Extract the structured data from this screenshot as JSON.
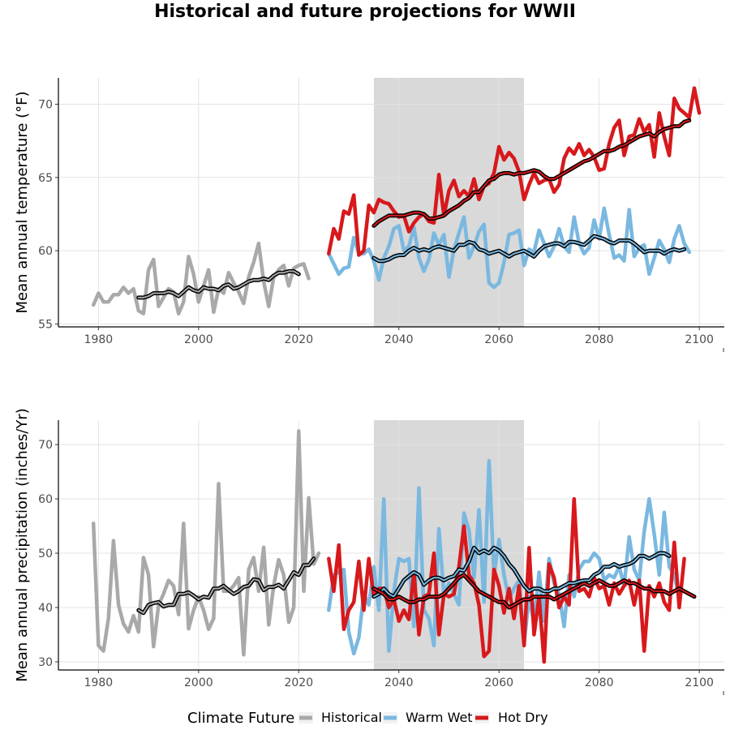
{
  "title": "Historical and future projections for WWII",
  "colors": {
    "historical": "#a9a9a9",
    "warm_wet": "#7ab8e0",
    "hot_dry": "#d7191c",
    "moving_average": "#000000",
    "shaded_period": "#d9d9d9",
    "grid": "#e3e3e3"
  },
  "legend": {
    "title": "Climate Future",
    "items": [
      {
        "label": "Historical",
        "color": "#a9a9a9"
      },
      {
        "label": "Warm Wet",
        "color": "#7ab8e0"
      },
      {
        "label": "Hot Dry",
        "color": "#d7191c"
      }
    ]
  },
  "chart_data": [
    {
      "type": "line",
      "ylabel": "Mean annual temperature (°F)",
      "xlabel": "",
      "xlim": [
        1972,
        2105
      ],
      "ylim": [
        54.8,
        71.8
      ],
      "x_ticks": [
        1980,
        2000,
        2020,
        2040,
        2060,
        2080,
        2100
      ],
      "y_ticks": [
        55,
        60,
        65,
        70
      ],
      "shaded_period": [
        2035,
        2065
      ],
      "series": [
        {
          "name": "Historical",
          "x_start": 1979,
          "values": [
            56.3,
            57.1,
            56.5,
            56.5,
            57.0,
            57.0,
            57.5,
            57.1,
            57.4,
            55.9,
            55.7,
            58.7,
            59.4,
            56.2,
            56.8,
            57.4,
            57.2,
            55.7,
            56.5,
            59.6,
            58.4,
            56.5,
            57.6,
            58.7,
            55.8,
            57.4,
            57.1,
            58.5,
            57.8,
            57.2,
            56.4,
            58.2,
            59.2,
            60.5,
            57.9,
            56.2,
            58.2,
            58.7,
            59.0,
            57.6,
            58.8,
            59.0,
            59.1,
            58.1
          ]
        },
        {
          "name": "Historical moving average",
          "x_start": 1988,
          "values": [
            56.8,
            56.8,
            56.9,
            57.1,
            57.1,
            57.1,
            57.2,
            57.1,
            56.9,
            57.2,
            57.5,
            57.3,
            57.2,
            57.5,
            57.4,
            57.4,
            57.3,
            57.6,
            57.7,
            57.4,
            57.5,
            57.7,
            57.9,
            58.0,
            58.0,
            58.1,
            58.0,
            58.3,
            58.5,
            58.5,
            58.6,
            58.6,
            58.4
          ]
        },
        {
          "name": "Warm Wet",
          "x_start": 2026,
          "values": [
            59.8,
            59.1,
            58.4,
            58.8,
            58.9,
            60.9,
            59.8,
            59.8,
            60.1,
            59.3,
            58.0,
            59.5,
            60.3,
            61.5,
            61.7,
            60.0,
            60.3,
            61.6,
            59.5,
            58.6,
            59.4,
            61.2,
            60.4,
            61.1,
            58.2,
            60.1,
            61.2,
            62.3,
            59.5,
            60.3,
            61.3,
            61.8,
            57.8,
            57.5,
            57.8,
            59.2,
            61.1,
            61.2,
            61.4,
            59.0,
            60.1,
            59.9,
            61.4,
            60.5,
            59.6,
            60.3,
            61.5,
            60.3,
            59.9,
            62.3,
            60.5,
            59.8,
            60.2,
            62.1,
            60.8,
            62.9,
            61.1,
            59.5,
            59.7,
            59.3,
            62.8,
            59.6,
            60.2,
            60.4,
            58.4,
            59.5,
            60.7,
            60.1,
            59.2,
            60.8,
            61.7,
            60.5,
            59.9
          ]
        },
        {
          "name": "Warm Wet moving average",
          "x_start": 2035,
          "values": [
            59.5,
            59.3,
            59.3,
            59.4,
            59.6,
            59.7,
            59.7,
            60.0,
            60.2,
            60.0,
            60.1,
            60.0,
            60.2,
            60.3,
            60.2,
            60.1,
            60.0,
            60.4,
            60.4,
            60.6,
            60.5,
            60.1,
            60.0,
            59.8,
            59.9,
            60.0,
            59.8,
            59.6,
            59.8,
            59.9,
            60.0,
            59.8,
            59.6,
            60.0,
            60.3,
            60.4,
            60.5,
            60.5,
            60.3,
            60.6,
            60.6,
            60.5,
            60.4,
            60.7,
            61.0,
            60.9,
            60.8,
            60.6,
            60.5,
            60.7,
            60.7,
            60.7,
            60.5,
            60.2,
            59.9,
            60.0,
            60.0,
            60.0,
            59.8,
            60.0,
            60.1,
            60.0,
            60.1
          ]
        },
        {
          "name": "Hot Dry",
          "x_start": 2026,
          "values": [
            59.8,
            61.5,
            60.8,
            62.7,
            62.5,
            63.8,
            59.7,
            60.0,
            63.1,
            62.6,
            63.5,
            63.3,
            63.2,
            62.7,
            62.3,
            62.4,
            61.3,
            61.9,
            62.3,
            62.5,
            62.0,
            61.9,
            65.2,
            62.4,
            64.1,
            64.8,
            63.7,
            64.1,
            63.7,
            64.9,
            63.5,
            64.4,
            64.6,
            65.3,
            67.1,
            66.2,
            66.7,
            66.3,
            65.4,
            63.5,
            64.5,
            65.3,
            64.6,
            64.8,
            64.9,
            64.0,
            64.5,
            66.3,
            67.0,
            66.6,
            67.3,
            66.5,
            66.9,
            66.4,
            65.5,
            65.6,
            67.3,
            68.4,
            68.9,
            66.5,
            67.8,
            67.9,
            69.0,
            68.1,
            68.6,
            66.4,
            69.4,
            67.8,
            66.5,
            70.4,
            69.7,
            69.4,
            69.1,
            71.1,
            69.4
          ]
        },
        {
          "name": "Hot Dry moving average",
          "x_start": 2035,
          "values": [
            61.7,
            62.0,
            62.2,
            62.4,
            62.4,
            62.4,
            62.4,
            62.5,
            62.6,
            62.6,
            62.5,
            62.2,
            62.2,
            62.3,
            62.4,
            62.7,
            62.9,
            63.1,
            63.4,
            63.6,
            64.0,
            64.0,
            64.4,
            64.8,
            64.9,
            65.2,
            65.3,
            65.3,
            65.2,
            65.3,
            65.3,
            65.4,
            65.5,
            65.4,
            65.1,
            64.9,
            64.9,
            65.1,
            65.3,
            65.5,
            65.7,
            65.9,
            66.1,
            66.2,
            66.4,
            66.6,
            66.8,
            66.8,
            66.9,
            67.1,
            67.2,
            67.4,
            67.6,
            67.8,
            67.9,
            68.0,
            67.8,
            68.1,
            68.3,
            68.4,
            68.5,
            68.5,
            68.8,
            68.9
          ]
        }
      ]
    },
    {
      "type": "line",
      "ylabel": "Mean annual precipitation (inches/Yr)",
      "xlabel": "",
      "xlim": [
        1972,
        2105
      ],
      "ylim": [
        28.5,
        74.5
      ],
      "x_ticks": [
        1980,
        2000,
        2020,
        2040,
        2060,
        2080,
        2100
      ],
      "y_ticks": [
        30,
        40,
        50,
        60,
        70
      ],
      "shaded_period": [
        2035,
        2065
      ],
      "series": [
        {
          "name": "Historical",
          "x_start": 1979,
          "values": [
            55.5,
            33.0,
            32.0,
            38.0,
            52.3,
            40.5,
            37.0,
            35.5,
            38.5,
            35.5,
            49.2,
            46.0,
            32.8,
            40.5,
            42.5,
            45.0,
            44.0,
            38.7,
            55.5,
            36.1,
            39.5,
            42.0,
            39.5,
            36.0,
            38.0,
            62.8,
            43.0,
            43.0,
            44.0,
            45.5,
            31.3,
            47.0,
            49.2,
            43.0,
            51.1,
            36.8,
            44.0,
            48.8,
            46.0,
            37.3,
            40.0,
            72.5,
            43.0,
            60.2,
            48.0,
            50.0
          ]
        },
        {
          "name": "Historical moving average",
          "x_start": 1988,
          "values": [
            39.5,
            39.0,
            40.5,
            40.8,
            41.0,
            40.2,
            40.5,
            40.5,
            42.5,
            42.5,
            42.8,
            42.2,
            41.5,
            42.0,
            41.8,
            43.5,
            43.5,
            44.0,
            43.2,
            42.5,
            43.0,
            43.8,
            44.0,
            45.2,
            45.0,
            43.2,
            43.8,
            43.8,
            44.2,
            43.5,
            45.0,
            46.5,
            46.0,
            47.8,
            47.8,
            49.0
          ]
        },
        {
          "name": "Warm Wet",
          "x_start": 2026,
          "values": [
            39.5,
            46.0,
            46.5,
            47.0,
            35.5,
            31.5,
            34.5,
            42.5,
            40.5,
            47.5,
            39.5,
            60.0,
            32.0,
            43.0,
            49.0,
            48.5,
            49.0,
            36.5,
            62.0,
            39.5,
            38.0,
            33.0,
            54.5,
            42.5,
            44.5,
            42.5,
            40.5,
            57.4,
            54.2,
            45.5,
            58.0,
            41.0,
            67.0,
            46.0,
            52.5,
            46.0,
            41.5,
            43.5,
            45.0,
            33.2,
            42.0,
            37.0,
            46.5,
            37.5,
            49.0,
            44.5,
            42.5,
            36.5,
            46.0,
            42.0,
            47.0,
            48.5,
            48.5,
            50.0,
            49.0,
            45.0,
            46.0,
            45.5,
            47.5,
            44.0,
            53.0,
            47.0,
            45.0,
            54.0,
            60.0,
            53.5,
            46.0,
            57.5,
            47.5,
            46.0,
            41.8
          ]
        },
        {
          "name": "Warm Wet moving average",
          "x_start": 2035,
          "values": [
            42.0,
            42.5,
            43.5,
            42.5,
            42.0,
            43.5,
            45.0,
            45.8,
            46.5,
            46.0,
            44.2,
            45.0,
            45.5,
            45.5,
            45.0,
            45.5,
            45.8,
            47.0,
            46.8,
            48.5,
            51.0,
            50.0,
            50.5,
            50.0,
            51.0,
            50.5,
            49.5,
            48.0,
            47.0,
            45.5,
            44.0,
            43.0,
            43.5,
            43.5,
            43.0,
            43.0,
            43.5,
            43.5,
            44.0,
            44.5,
            44.5,
            44.8,
            45.0,
            45.0,
            46.0,
            46.5,
            47.5,
            47.5,
            48.0,
            47.5,
            47.8,
            48.0,
            48.5,
            49.5,
            49.5,
            49.0,
            49.5,
            50.0,
            50.0,
            49.5
          ]
        },
        {
          "name": "Hot Dry",
          "x_start": 2026,
          "values": [
            49.0,
            43.0,
            51.5,
            36.0,
            39.5,
            41.0,
            48.5,
            39.5,
            49.0,
            42.0,
            43.5,
            43.5,
            40.0,
            41.5,
            37.5,
            39.5,
            37.8,
            46.5,
            35.0,
            42.0,
            42.5,
            50.0,
            35.0,
            42.5,
            42.0,
            42.5,
            47.5,
            55.0,
            46.0,
            44.5,
            40.5,
            31.0,
            32.0,
            47.0,
            44.0,
            39.0,
            43.5,
            38.0,
            44.0,
            33.0,
            51.0,
            35.0,
            42.0,
            30.0,
            48.0,
            45.5,
            40.0,
            42.0,
            40.5,
            60.0,
            43.0,
            43.5,
            42.0,
            45.5,
            43.5,
            44.0,
            40.5,
            44.5,
            42.5,
            44.0,
            45.0,
            40.5,
            45.0,
            32.0,
            44.0,
            42.0,
            44.5,
            41.0,
            39.5,
            52.0,
            40.0,
            49.0
          ]
        },
        {
          "name": "Hot Dry moving average",
          "x_start": 2035,
          "values": [
            43.5,
            43.0,
            42.5,
            41.5,
            41.5,
            42.0,
            41.5,
            41.0,
            41.0,
            41.5,
            41.5,
            42.0,
            42.0,
            42.0,
            42.5,
            43.5,
            44.5,
            45.5,
            46.0,
            45.0,
            44.0,
            43.0,
            42.5,
            42.0,
            41.5,
            41.0,
            41.0,
            40.0,
            40.5,
            41.0,
            41.5,
            41.5,
            42.0,
            42.0,
            42.0,
            42.0,
            41.5,
            42.0,
            42.5,
            43.0,
            43.5,
            44.0,
            44.5,
            44.0,
            44.5,
            45.0,
            44.5,
            44.0,
            44.0,
            44.5,
            45.0,
            44.5,
            44.5,
            44.0,
            43.5,
            43.5,
            43.0,
            43.0,
            43.0,
            42.5,
            43.0,
            43.5,
            43.0,
            42.5,
            42.0
          ]
        }
      ]
    }
  ]
}
